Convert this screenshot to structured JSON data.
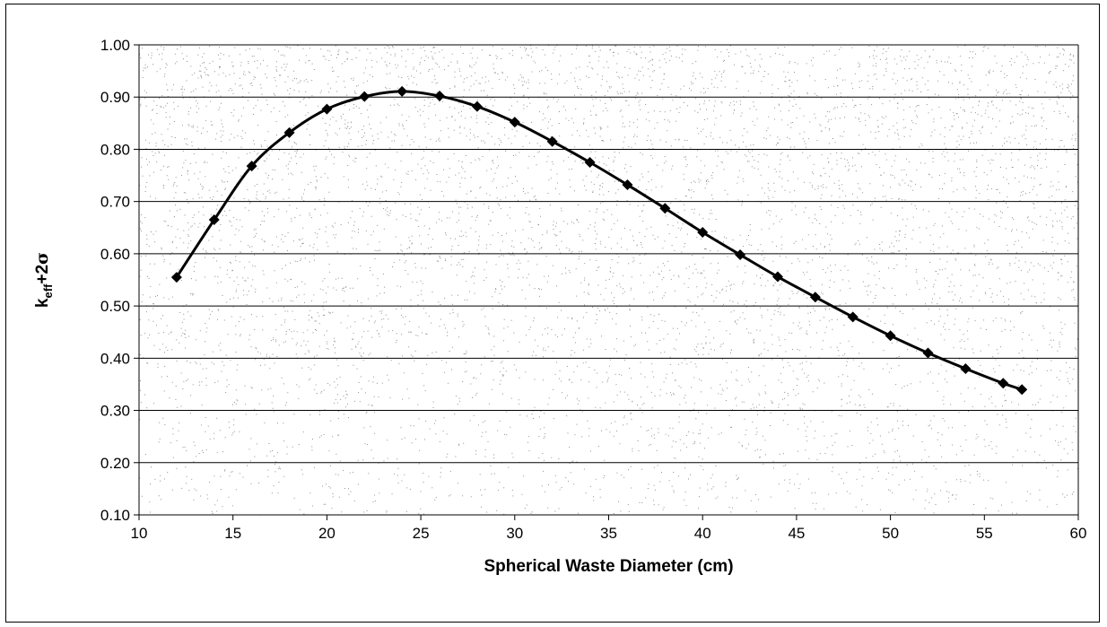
{
  "chart_data": {
    "type": "line",
    "title": "",
    "xlabel": "Spherical Waste Diameter (cm)",
    "ylabel_parts": {
      "base": "k",
      "sub": "eff",
      "rest": "+2",
      "sigma": "σ"
    },
    "xlim": [
      10,
      60
    ],
    "ylim": [
      0.1,
      1.0
    ],
    "x_ticks": [
      "10",
      "15",
      "20",
      "25",
      "30",
      "35",
      "40",
      "45",
      "50",
      "55",
      "60"
    ],
    "y_ticks": [
      "1.00",
      "0.90",
      "0.80",
      "0.70",
      "0.60",
      "0.50",
      "0.40",
      "0.30",
      "0.20",
      "0.10"
    ],
    "grid": "horizontal",
    "legend": "none",
    "marker": "diamond",
    "colors": {
      "line": "#000000",
      "marker": "#000000",
      "grid": "#000000",
      "noise": "#333333"
    },
    "series": [
      {
        "x": [
          12,
          14,
          16,
          18,
          20,
          22,
          24,
          26,
          28,
          30,
          32,
          34,
          36,
          38,
          40,
          42,
          44,
          46,
          48,
          50,
          52,
          54,
          56,
          57
        ],
        "y": [
          0.555,
          0.665,
          0.768,
          0.832,
          0.877,
          0.901,
          0.911,
          0.902,
          0.882,
          0.852,
          0.815,
          0.775,
          0.732,
          0.687,
          0.641,
          0.598,
          0.556,
          0.517,
          0.479,
          0.443,
          0.41,
          0.38,
          0.352,
          0.34
        ]
      }
    ]
  }
}
